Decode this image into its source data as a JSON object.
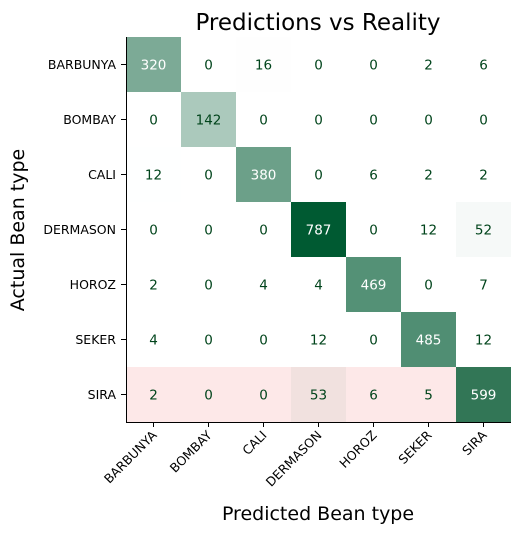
{
  "chart_data": {
    "type": "heatmap",
    "title": "Predictions vs Reality",
    "xlabel": "Predicted Bean type",
    "ylabel": "Actual Bean type",
    "x_categories": [
      "BARBUNYA",
      "BOMBAY",
      "CALI",
      "DERMASON",
      "HOROZ",
      "SEKER",
      "SIRA"
    ],
    "y_categories": [
      "BARBUNYA",
      "BOMBAY",
      "CALI",
      "DERMASON",
      "HOROZ",
      "SEKER",
      "SIRA"
    ],
    "values": [
      [
        320,
        0,
        16,
        0,
        0,
        2,
        6
      ],
      [
        0,
        142,
        0,
        0,
        0,
        0,
        0
      ],
      [
        12,
        0,
        380,
        0,
        6,
        2,
        2
      ],
      [
        0,
        0,
        0,
        787,
        0,
        12,
        52
      ],
      [
        2,
        0,
        4,
        4,
        469,
        0,
        7
      ],
      [
        4,
        0,
        0,
        12,
        0,
        485,
        12
      ],
      [
        2,
        0,
        0,
        53,
        6,
        5,
        599
      ]
    ],
    "highlighted_row": "SIRA",
    "colormap": {
      "low": "#ffffff",
      "high": "#005a32",
      "highlight_tint": "#fde8e8"
    },
    "text_colors": {
      "dark_cell": "#ffffff",
      "light_cell": "#00441b"
    }
  }
}
